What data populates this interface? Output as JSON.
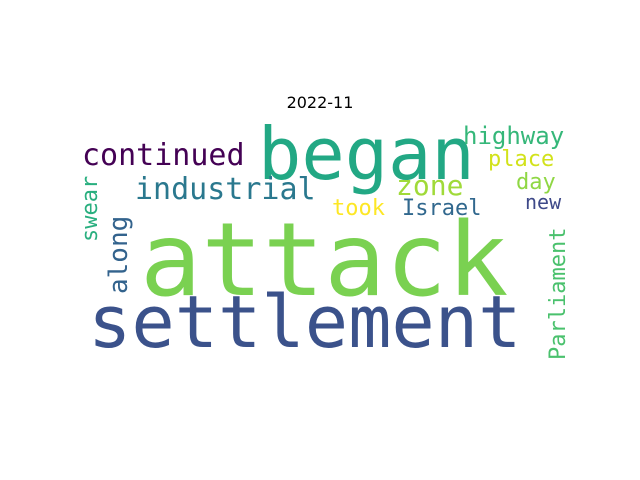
{
  "title": "2022-11",
  "words": {
    "attack": {
      "text": "attack",
      "color": "#7ad151"
    },
    "settlement": {
      "text": "settlement",
      "color": "#3b528b"
    },
    "began": {
      "text": "began",
      "color": "#22a884"
    },
    "continued": {
      "text": "continued",
      "color": "#440154"
    },
    "industrial": {
      "text": "industrial",
      "color": "#2a788e"
    },
    "zone": {
      "text": "zone",
      "color": "#a0da39"
    },
    "highway": {
      "text": "highway",
      "color": "#35b779"
    },
    "place": {
      "text": "place",
      "color": "#d2e21b"
    },
    "day": {
      "text": "day",
      "color": "#8fd744"
    },
    "new": {
      "text": "new",
      "color": "#3e4989"
    },
    "israel": {
      "text": "Israel",
      "color": "#31688e"
    },
    "took": {
      "text": "took",
      "color": "#fde725"
    },
    "along": {
      "text": "along",
      "color": "#33638d"
    },
    "swear": {
      "text": "swear",
      "color": "#29af7f"
    },
    "parliament": {
      "text": "Parliament",
      "color": "#4ac16d"
    }
  }
}
